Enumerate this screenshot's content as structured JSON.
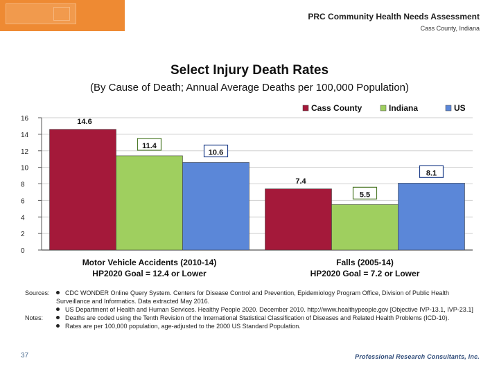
{
  "header": {
    "title": "PRC Community Health Needs Assessment",
    "subtitle": "Cass County, Indiana"
  },
  "colors": {
    "cass_county": "#a4193a",
    "indiana": "#9fcf5f",
    "us": "#5b87d8",
    "logo": "#ee8a33"
  },
  "chart_data": {
    "type": "bar",
    "title": "Select Injury Death Rates",
    "subtitle": "(By Cause of Death; Annual Average Deaths per 100,000 Population)",
    "categories": [
      [
        "Motor Vehicle Accidents (2010-14)",
        "HP2020 Goal = 12.4 or Lower"
      ],
      [
        "Falls (2005-14)",
        "HP2020 Goal = 7.2 or Lower"
      ]
    ],
    "series": [
      {
        "name": "Cass County",
        "values": [
          14.6,
          7.4
        ]
      },
      {
        "name": "Indiana",
        "values": [
          11.4,
          5.5
        ]
      },
      {
        "name": "US",
        "values": [
          10.6,
          8.1
        ]
      }
    ],
    "ylim": [
      0,
      16
    ],
    "yticks": [
      0,
      2,
      4,
      6,
      8,
      10,
      12,
      14,
      16
    ],
    "legend": "top-right",
    "xlabel": "",
    "ylabel": ""
  },
  "notes": {
    "sources_label": "Sources:",
    "sources": [
      "CDC WONDER Online Query System. Centers for Disease Control and Prevention, Epidemiology Program Office, Division of Public Health Surveillance and Informatics. Data extracted May 2016.",
      "US Department of Health and Human Services. Healthy People 2020. December 2010. http://www.healthypeople.gov [Objective IVP-13.1, IVP-23.1]"
    ],
    "notes_label": "Notes:",
    "notes": [
      "Deaths are coded using the Tenth Revision of the International Statistical Classification of Diseases and Related Health Problems (ICD-10).",
      "Rates are per 100,000 population, age-adjusted to the 2000 US Standard Population."
    ]
  },
  "footer": {
    "page_number": "37",
    "company": "Professional Research Consultants, Inc."
  }
}
